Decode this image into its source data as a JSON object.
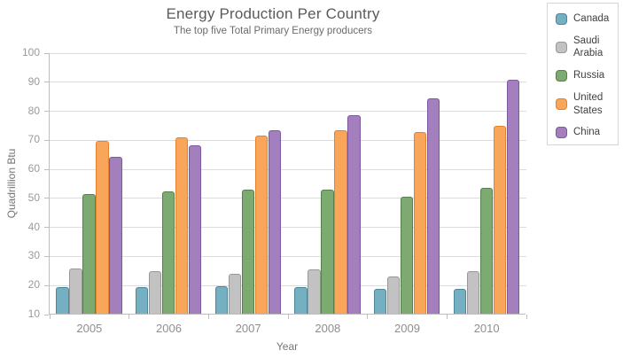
{
  "chart_data": {
    "type": "bar",
    "title": "Energy Production Per Country",
    "subtitle": "The top five Total Primary Energy producers",
    "xlabel": "Year",
    "ylabel": "Quadrillion Btu",
    "ylim": [
      10,
      100
    ],
    "ytick_step": 10,
    "grid": true,
    "legend_position": "right",
    "categories": [
      "2005",
      "2006",
      "2007",
      "2008",
      "2009",
      "2010"
    ],
    "series": [
      {
        "name": "Canada",
        "color": "#74b0c2",
        "border": "#4d8699",
        "values": [
          19.1,
          19.3,
          19.6,
          19.1,
          18.5,
          18.4
        ]
      },
      {
        "name": "Saudi Arabia",
        "color": "#c2c2c2",
        "border": "#989898",
        "values": [
          25.6,
          24.7,
          23.8,
          25.2,
          22.8,
          24.8
        ]
      },
      {
        "name": "Russia",
        "color": "#7daa70",
        "border": "#55804b",
        "values": [
          51.1,
          52.1,
          52.6,
          52.6,
          50.4,
          53.3
        ]
      },
      {
        "name": "United States",
        "color": "#f9a55a",
        "border": "#e0832c",
        "values": [
          69.4,
          70.7,
          71.4,
          73.2,
          72.6,
          74.8
        ]
      },
      {
        "name": "China",
        "color": "#a47fbe",
        "border": "#7d58a0",
        "values": [
          64.0,
          68.1,
          73.3,
          78.3,
          84.0,
          90.5
        ]
      }
    ],
    "axis_colors": {
      "gridline": "#dcdcdc",
      "axis_line": "#bdbdbd",
      "tick_label": "#9a9a9a"
    }
  }
}
